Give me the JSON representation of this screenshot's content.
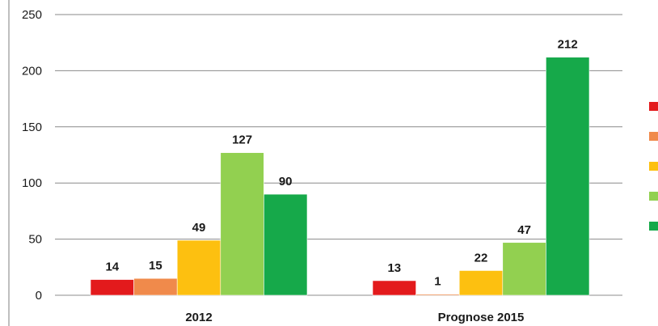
{
  "chart_data": {
    "type": "bar",
    "title": "",
    "xlabel": "",
    "ylabel": "",
    "categories": [
      "2012",
      "Prognose 2015"
    ],
    "ylim": [
      0,
      250
    ],
    "yticks": [
      0,
      50,
      100,
      150,
      200,
      250
    ],
    "grid": true,
    "legend_position": "right",
    "series": [
      {
        "color": "#e31a1c",
        "values": [
          14,
          13
        ]
      },
      {
        "color": "#f08a4b",
        "values": [
          15,
          1
        ]
      },
      {
        "color": "#fdc010",
        "values": [
          49,
          22
        ]
      },
      {
        "color": "#92d050",
        "values": [
          127,
          47
        ]
      },
      {
        "color": "#16a94a",
        "values": [
          90,
          212
        ]
      }
    ]
  }
}
